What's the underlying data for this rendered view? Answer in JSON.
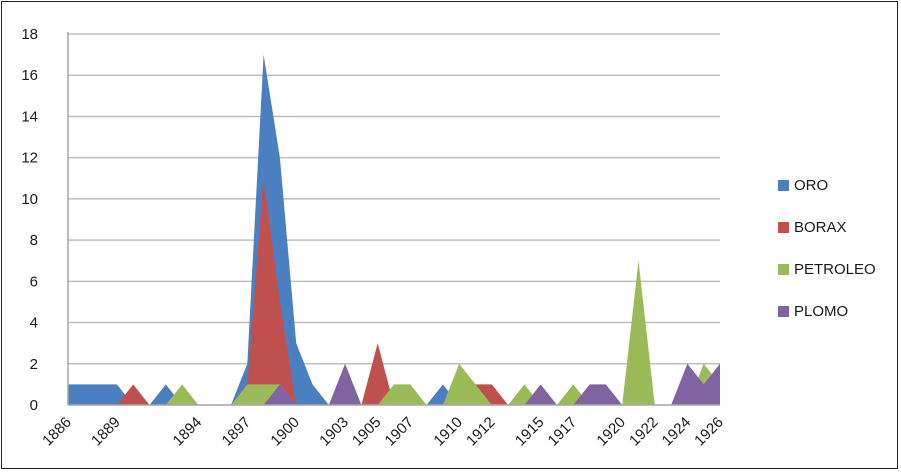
{
  "chart_data": {
    "type": "area",
    "title": "",
    "xlabel": "",
    "ylabel": "",
    "ylim": [
      0,
      18
    ],
    "y_ticks": [
      0,
      2,
      4,
      6,
      8,
      10,
      12,
      14,
      16,
      18
    ],
    "grid": true,
    "legend_position": "right",
    "x": [
      1886,
      1887,
      1888,
      1889,
      1890,
      1891,
      1892,
      1893,
      1894,
      1895,
      1896,
      1897,
      1898,
      1899,
      1900,
      1901,
      1902,
      1903,
      1904,
      1905,
      1906,
      1907,
      1908,
      1909,
      1910,
      1911,
      1912,
      1913,
      1914,
      1915,
      1916,
      1917,
      1918,
      1919,
      1920,
      1921,
      1922,
      1923,
      1924,
      1925,
      1926
    ],
    "x_tick_labels": [
      "1886",
      "1889",
      "1894",
      "1897",
      "1900",
      "1903",
      "1905",
      "1907",
      "1910",
      "1912",
      "1915",
      "1917",
      "1920",
      "1922",
      "1924",
      "1926"
    ],
    "series": [
      {
        "name": "ORO",
        "color": "#4a7fc1",
        "values": [
          1,
          1,
          1,
          1,
          0,
          0,
          1,
          0,
          0,
          0,
          0,
          2,
          17,
          12,
          3,
          1,
          0,
          0,
          0,
          0,
          0,
          0,
          0,
          1,
          0,
          0,
          0,
          0,
          0,
          0,
          0,
          0,
          0,
          0,
          0,
          0,
          0,
          0,
          0,
          0,
          0
        ]
      },
      {
        "name": "BORAX",
        "color": "#c0504d",
        "values": [
          0,
          0,
          0,
          0,
          1,
          0,
          0,
          0,
          0,
          0,
          0,
          1,
          11,
          5,
          0,
          0,
          0,
          0,
          0,
          3,
          0,
          0,
          0,
          0,
          0,
          1,
          1,
          0,
          0,
          0,
          0,
          0,
          0,
          0,
          0,
          0,
          0,
          0,
          0,
          0,
          0
        ]
      },
      {
        "name": "PETROLEO",
        "color": "#9bbb59",
        "values": [
          0,
          0,
          0,
          0,
          0,
          0,
          0,
          1,
          0,
          0,
          0,
          1,
          1,
          1,
          0,
          0,
          0,
          0,
          0,
          0,
          1,
          1,
          0,
          0,
          2,
          1,
          0,
          0,
          1,
          0,
          0,
          1,
          0,
          0,
          0,
          7,
          0,
          0,
          0,
          2,
          1
        ]
      },
      {
        "name": "PLOMO",
        "color": "#8064a2",
        "values": [
          0,
          0,
          0,
          0,
          0,
          0,
          0,
          0,
          0,
          0,
          0,
          0,
          0,
          1,
          0,
          0,
          0,
          2,
          0,
          0,
          0,
          0,
          0,
          0,
          0,
          0,
          0,
          0,
          0,
          1,
          0,
          0,
          1,
          1,
          0,
          0,
          0,
          0,
          2,
          1,
          2
        ]
      }
    ]
  }
}
